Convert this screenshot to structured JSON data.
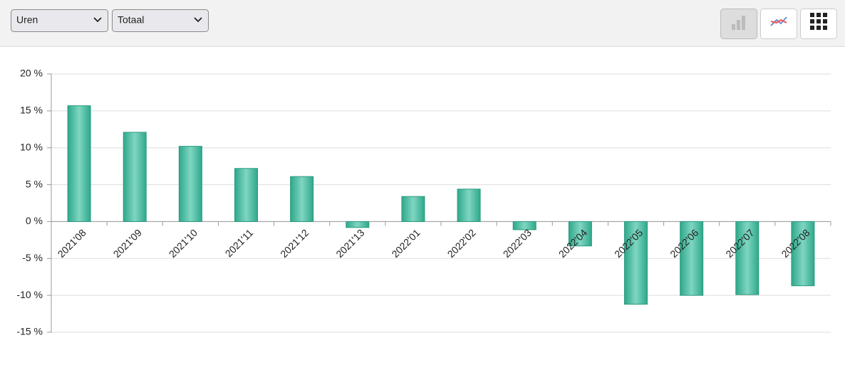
{
  "toolbar": {
    "dropdowns": [
      "Uren",
      "Totaal"
    ]
  },
  "chart_data": {
    "type": "bar",
    "categories": [
      "2021'08",
      "2021'09",
      "2021'10",
      "2021'11",
      "2021'12",
      "2021'13",
      "2022'01",
      "2022'02",
      "2022'03",
      "2022'04",
      "2022'05",
      "2022'06",
      "2022'07",
      "2022'08"
    ],
    "values": [
      15.7,
      12.1,
      10.2,
      7.2,
      6.1,
      -0.8,
      3.4,
      4.4,
      -1.1,
      -3.3,
      -11.2,
      -10.0,
      -9.9,
      -8.7
    ],
    "color": "#3fb89c",
    "ylim": [
      -15,
      20
    ],
    "yticks": [
      {
        "value": -15,
        "label": "-15 %"
      },
      {
        "value": -10,
        "label": "-10 %"
      },
      {
        "value": -5,
        "label": "-5 %"
      },
      {
        "value": 0,
        "label": "0 %"
      },
      {
        "value": 5,
        "label": "5 %"
      },
      {
        "value": 10,
        "label": "10 %"
      },
      {
        "value": 15,
        "label": "15 %"
      },
      {
        "value": 20,
        "label": "20 %"
      }
    ],
    "grid": true
  }
}
